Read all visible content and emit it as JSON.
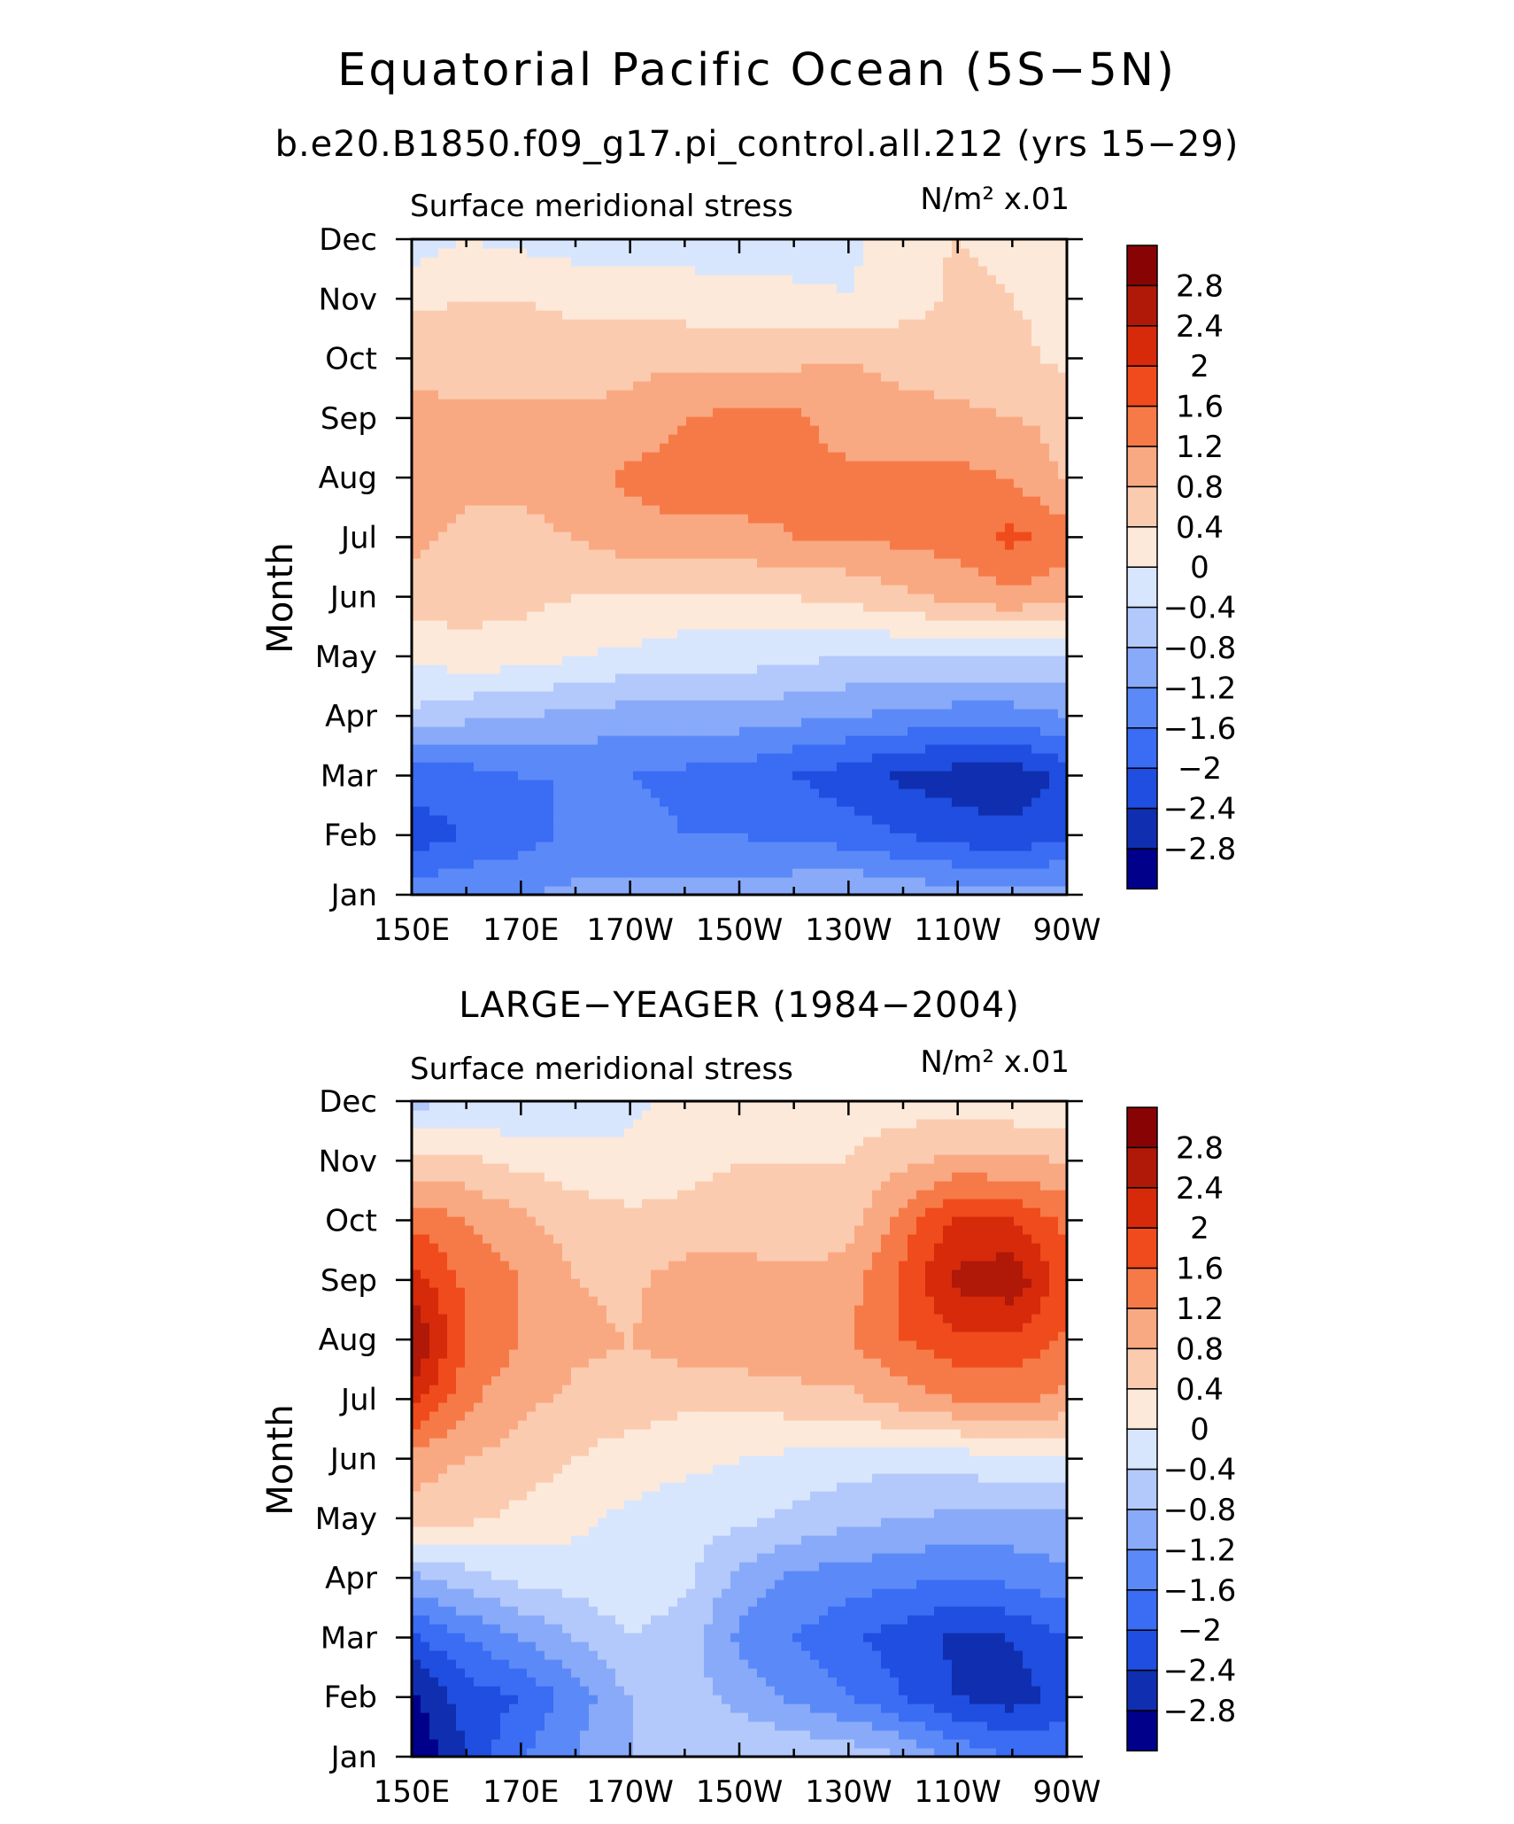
{
  "figure": {
    "title": "Equatorial Pacific Ocean (5S−5N)",
    "subtitle": "b.e20.B1850.f09_g17.pi_control.all.212 (yrs 15−29)"
  },
  "palette": [
    "#00008b",
    "#0f2fb0",
    "#1f4ee0",
    "#3a6cf4",
    "#5b8af8",
    "#88aaf8",
    "#b3c9fb",
    "#d8e6fd",
    "#fde9d9",
    "#fbcbb0",
    "#f9a982",
    "#f67a48",
    "#f04b1c",
    "#d62a0b",
    "#b01808",
    "#880404"
  ],
  "colorbar": {
    "labels": [
      "2.8",
      "2.4",
      "2",
      "1.6",
      "1.2",
      "0.8",
      "0.4",
      "0",
      "−0.4",
      "−0.8",
      "−1.2",
      "−1.6",
      "−2",
      "−2.4",
      "−2.8"
    ]
  },
  "panels": [
    {
      "header": "",
      "left_label": "Surface meridional stress",
      "units": "N/m² x.01",
      "ylabel": "Month",
      "xticks": [
        "150E",
        "170E",
        "170W",
        "150W",
        "130W",
        "110W",
        "90W"
      ],
      "yticks": [
        "Jan",
        "Feb",
        "Mar",
        "Apr",
        "May",
        "Jun",
        "Jul",
        "Aug",
        "Sep",
        "Oct",
        "Nov",
        "Dec"
      ]
    },
    {
      "header": "LARGE−YEAGER (1984−2004)",
      "left_label": "Surface meridional stress",
      "units": "N/m² x.01",
      "ylabel": "Month",
      "xticks": [
        "150E",
        "170E",
        "170W",
        "150W",
        "130W",
        "110W",
        "90W"
      ],
      "yticks": [
        "Jan",
        "Feb",
        "Mar",
        "Apr",
        "May",
        "Jun",
        "Jul",
        "Aug",
        "Sep",
        "Oct",
        "Nov",
        "Dec"
      ]
    }
  ],
  "chart_data": [
    {
      "type": "heatmap",
      "title": "",
      "xlabel": "",
      "ylabel": "Month",
      "units": "N/m² x.01",
      "x": [
        150,
        160,
        170,
        180,
        190,
        200,
        210,
        220,
        230,
        240,
        250,
        260,
        270
      ],
      "x_unit": "degrees east",
      "y": [
        "Jan",
        "Feb",
        "Mar",
        "Apr",
        "May",
        "Jun",
        "Jul",
        "Aug",
        "Sep",
        "Oct",
        "Nov",
        "Dec"
      ],
      "levels": [
        -2.8,
        -2.4,
        -2.0,
        -1.6,
        -1.2,
        -0.8,
        -0.4,
        0,
        0.4,
        0.8,
        1.2,
        1.6,
        2.0,
        2.4,
        2.8
      ],
      "values": [
        [
          -1.4,
          -1.2,
          -1.2,
          -1.1,
          -1.1,
          -1.0,
          -1.0,
          -0.9,
          -0.8,
          -0.9,
          -1.0,
          -1.0,
          -1.0
        ],
        [
          -2.2,
          -2.0,
          -1.8,
          -1.5,
          -1.4,
          -1.6,
          -1.6,
          -1.7,
          -1.8,
          -2.0,
          -2.2,
          -2.3,
          -2.1
        ],
        [
          -1.8,
          -1.8,
          -1.6,
          -1.6,
          -1.6,
          -1.7,
          -1.8,
          -2.0,
          -2.2,
          -2.5,
          -2.6,
          -2.7,
          -2.3
        ],
        [
          -0.5,
          -0.7,
          -0.8,
          -0.9,
          -1.0,
          -1.0,
          -1.0,
          -1.1,
          -1.2,
          -1.3,
          -1.4,
          -1.4,
          -1.2
        ],
        [
          0.1,
          0.2,
          0.2,
          0.0,
          -0.1,
          -0.2,
          -0.2,
          -0.3,
          -0.4,
          -0.4,
          -0.4,
          -0.4,
          -0.5
        ],
        [
          0.6,
          0.6,
          0.5,
          0.4,
          0.4,
          0.3,
          0.3,
          0.4,
          0.5,
          0.7,
          0.9,
          1.1,
          0.9
        ],
        [
          0.9,
          0.7,
          0.7,
          0.8,
          1.0,
          1.1,
          1.1,
          1.2,
          1.2,
          1.3,
          1.4,
          1.7,
          1.4
        ],
        [
          1.0,
          0.9,
          0.9,
          1.0,
          1.3,
          1.4,
          1.4,
          1.3,
          1.3,
          1.3,
          1.3,
          1.2,
          0.7
        ],
        [
          0.9,
          0.9,
          0.9,
          0.9,
          0.9,
          1.2,
          1.3,
          1.3,
          1.0,
          0.9,
          0.9,
          0.8,
          0.7
        ],
        [
          0.7,
          0.6,
          0.6,
          0.6,
          0.7,
          0.7,
          0.7,
          0.7,
          0.8,
          0.7,
          0.6,
          0.5,
          0.3
        ],
        [
          0.3,
          0.4,
          0.4,
          0.3,
          0.2,
          0.2,
          0.1,
          0.1,
          0.0,
          0.2,
          0.5,
          0.4,
          0.3
        ],
        [
          -0.2,
          0.0,
          -0.1,
          -0.2,
          -0.2,
          -0.2,
          -0.2,
          -0.2,
          -0.1,
          0.3,
          0.4,
          0.3,
          0.1
        ]
      ]
    },
    {
      "type": "heatmap",
      "title": "LARGE−YEAGER (1984−2004)",
      "xlabel": "",
      "ylabel": "Month",
      "units": "N/m² x.01",
      "x": [
        150,
        160,
        170,
        180,
        190,
        200,
        210,
        220,
        230,
        240,
        250,
        260,
        270
      ],
      "x_unit": "degrees east",
      "y": [
        "Jan",
        "Feb",
        "Mar",
        "Apr",
        "May",
        "Jun",
        "Jul",
        "Aug",
        "Sep",
        "Oct",
        "Nov",
        "Dec"
      ],
      "levels": [
        -2.8,
        -2.4,
        -2.0,
        -1.6,
        -1.2,
        -0.8,
        -0.4,
        0,
        0.4,
        0.8,
        1.2,
        1.6,
        2.0,
        2.4,
        2.8
      ],
      "values": [
        [
          -3.2,
          -2.4,
          -1.6,
          -1.2,
          -0.8,
          -0.6,
          -0.5,
          -0.4,
          -0.5,
          -0.8,
          -1.3,
          -1.6,
          -1.7
        ],
        [
          -2.9,
          -2.2,
          -2.0,
          -1.4,
          -0.8,
          -0.6,
          -0.9,
          -1.3,
          -1.6,
          -2.0,
          -2.4,
          -2.6,
          -2.2
        ],
        [
          -2.1,
          -1.6,
          -1.2,
          -0.8,
          -0.4,
          -0.6,
          -1.3,
          -1.6,
          -1.9,
          -2.2,
          -2.5,
          -2.4,
          -2.0
        ],
        [
          -0.9,
          -0.6,
          -0.3,
          -0.2,
          -0.1,
          -0.3,
          -0.9,
          -1.3,
          -1.4,
          -1.5,
          -1.6,
          -1.5,
          -1.3
        ],
        [
          0.6,
          0.5,
          0.3,
          0.1,
          -0.1,
          -0.2,
          -0.3,
          -0.5,
          -0.7,
          -0.8,
          -0.9,
          -0.9,
          -0.9
        ],
        [
          1.0,
          0.8,
          0.6,
          0.4,
          0.2,
          0.1,
          0.0,
          -0.1,
          -0.2,
          -0.3,
          -0.2,
          -0.1,
          -0.1
        ],
        [
          2.2,
          1.3,
          0.9,
          0.7,
          0.6,
          0.5,
          0.5,
          0.6,
          0.7,
          1.0,
          1.2,
          1.3,
          1.1
        ],
        [
          2.9,
          1.6,
          1.2,
          0.9,
          0.8,
          1.0,
          1.1,
          1.2,
          1.2,
          1.6,
          1.9,
          1.9,
          1.5
        ],
        [
          2.2,
          1.5,
          1.2,
          0.8,
          0.7,
          1.0,
          1.0,
          0.9,
          1.0,
          1.7,
          2.5,
          2.7,
          1.8
        ],
        [
          1.5,
          1.2,
          0.9,
          0.6,
          0.5,
          0.5,
          0.6,
          0.5,
          0.6,
          1.4,
          2.1,
          2.0,
          1.5
        ],
        [
          0.5,
          0.5,
          0.3,
          0.2,
          0.1,
          0.3,
          0.4,
          0.4,
          0.4,
          0.7,
          0.9,
          0.9,
          0.8
        ],
        [
          -0.5,
          -0.4,
          -0.4,
          -0.3,
          -0.1,
          0.1,
          0.3,
          0.3,
          0.2,
          0.2,
          0.2,
          0.1,
          0.1
        ]
      ]
    }
  ]
}
